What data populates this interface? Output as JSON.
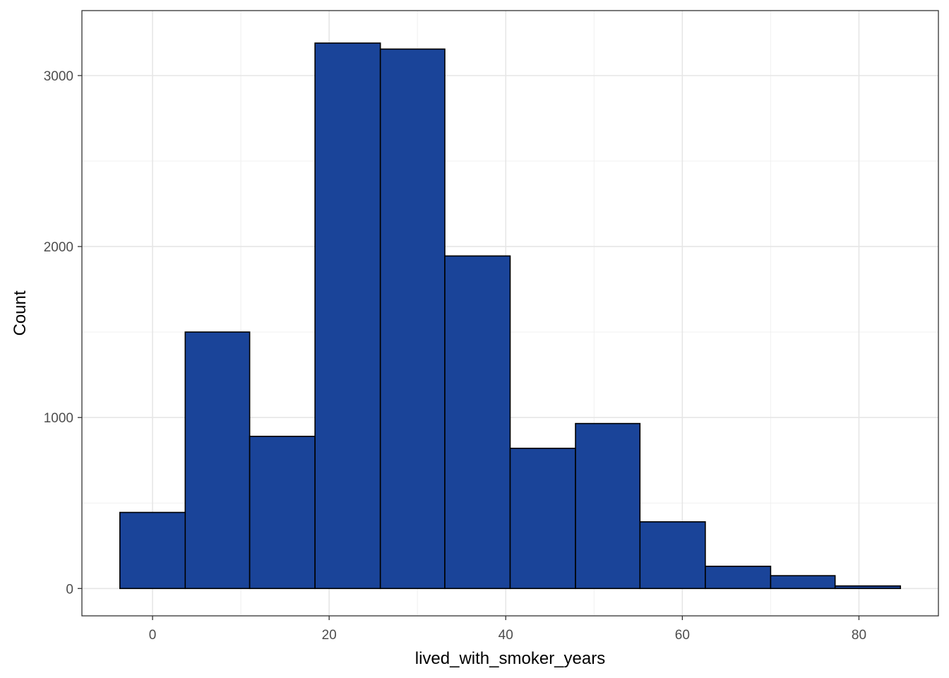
{
  "chart_data": {
    "type": "bar",
    "title": "",
    "xlabel": "lived_with_smoker_years",
    "ylabel": "Count",
    "xlim": [
      -8.0,
      89.0
    ],
    "ylim": [
      -160,
      3380
    ],
    "x_ticks": [
      0,
      20,
      40,
      60,
      80
    ],
    "y_ticks": [
      0,
      1000,
      2000,
      3000
    ],
    "x_minor_ticks": [
      10,
      30,
      50,
      70
    ],
    "y_minor_ticks": [
      500,
      1500,
      2500
    ],
    "grid": true,
    "bar_color": "#1a4499",
    "bar_edge_color": "#000000",
    "bins": [
      {
        "x0": -3.7,
        "x1": 3.7,
        "count": 445
      },
      {
        "x0": 3.7,
        "x1": 11.0,
        "count": 1500
      },
      {
        "x0": 11.0,
        "x1": 18.4,
        "count": 890
      },
      {
        "x0": 18.4,
        "x1": 25.8,
        "count": 3190
      },
      {
        "x0": 25.8,
        "x1": 33.1,
        "count": 3155
      },
      {
        "x0": 33.1,
        "x1": 40.5,
        "count": 1945
      },
      {
        "x0": 40.5,
        "x1": 47.9,
        "count": 820
      },
      {
        "x0": 47.9,
        "x1": 55.2,
        "count": 965
      },
      {
        "x0": 55.2,
        "x1": 62.6,
        "count": 390
      },
      {
        "x0": 62.6,
        "x1": 70.0,
        "count": 130
      },
      {
        "x0": 70.0,
        "x1": 77.3,
        "count": 75
      },
      {
        "x0": 77.3,
        "x1": 84.7,
        "count": 15
      }
    ]
  }
}
